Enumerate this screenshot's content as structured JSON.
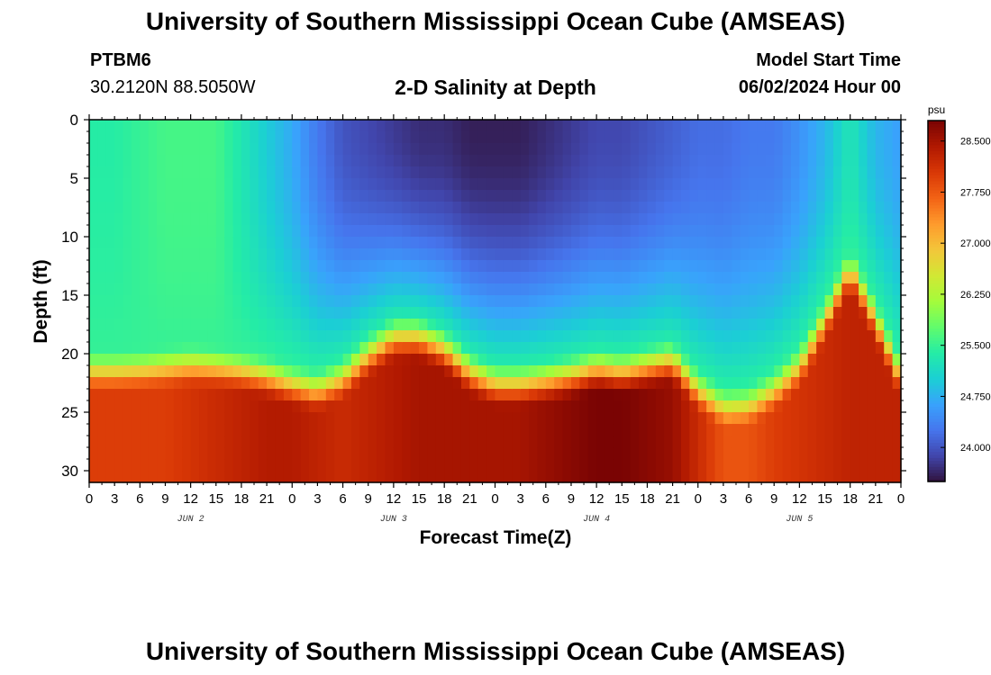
{
  "header": {
    "title": "University of Southern Mississippi Ocean Cube (AMSEAS)",
    "station": "PTBM6",
    "coords": "30.2120N  88.5050W",
    "subtitle": "2-D Salinity at Depth",
    "model_start_label": "Model Start Time",
    "model_start_value": "06/02/2024 Hour 00"
  },
  "footer": {
    "title": "University of Southern Mississippi Ocean Cube (AMSEAS)"
  },
  "chart_data": {
    "type": "heatmap",
    "title": "2-D Salinity at Depth",
    "xlabel": "Forecast Time(Z)",
    "ylabel": "Depth (ft)",
    "x_range_hours": [
      0,
      96
    ],
    "y_range_ft": [
      0,
      31
    ],
    "x_tick_labels": [
      "0",
      "3",
      "6",
      "9",
      "12",
      "15",
      "18",
      "21",
      "0",
      "3",
      "6",
      "9",
      "12",
      "15",
      "18",
      "21",
      "0",
      "3",
      "6",
      "9",
      "12",
      "15",
      "18",
      "21",
      "0",
      "3",
      "6",
      "9",
      "12",
      "15",
      "18",
      "21",
      "0"
    ],
    "y_tick_labels": [
      "0",
      "5",
      "10",
      "15",
      "20",
      "25",
      "30"
    ],
    "y_tick_values": [
      0,
      5,
      10,
      15,
      20,
      25,
      30
    ],
    "day_labels": [
      {
        "label": "JUN 2",
        "hour": 12
      },
      {
        "label": "JUN 3",
        "hour": 36
      },
      {
        "label": "JUN 4",
        "hour": 60
      },
      {
        "label": "JUN 5",
        "hour": 84
      }
    ],
    "colorbar": {
      "unit": "psu",
      "range": [
        23.5,
        28.8
      ],
      "tick_labels": [
        "28.500",
        "27.750",
        "27.000",
        "26.250",
        "25.500",
        "24.750",
        "24.000"
      ],
      "tick_values": [
        28.5,
        27.75,
        27.0,
        26.25,
        25.5,
        24.75,
        24.0
      ]
    },
    "columns_hours": [
      0,
      3,
      6,
      9,
      12,
      15,
      18,
      21,
      24,
      27,
      30,
      33,
      36,
      39,
      42,
      45,
      48,
      51,
      54,
      57,
      60,
      63,
      66,
      69,
      72,
      75,
      78,
      81,
      84,
      87,
      90,
      93,
      96
    ],
    "surface_salinity_psu": [
      25.4,
      25.4,
      25.5,
      25.6,
      25.6,
      25.6,
      25.3,
      25.0,
      24.7,
      24.3,
      24.0,
      23.9,
      23.8,
      23.7,
      23.7,
      23.6,
      23.6,
      23.6,
      23.7,
      23.8,
      23.9,
      23.9,
      24.0,
      24.1,
      24.2,
      24.2,
      24.3,
      24.3,
      24.5,
      24.8,
      25.3,
      24.8,
      24.6
    ],
    "interface_depth_ft": [
      20.3,
      20.3,
      20.2,
      20.0,
      19.8,
      20.0,
      20.3,
      20.8,
      21.5,
      22.0,
      21.0,
      19.0,
      17.5,
      17.5,
      18.5,
      20.5,
      21.5,
      21.5,
      21.2,
      20.8,
      20.2,
      20.5,
      20.0,
      19.5,
      22.0,
      23.5,
      23.3,
      22.0,
      20.0,
      16.0,
      11.5,
      16.0,
      21.0
    ],
    "bottom_salinity_psu": [
      28.0,
      28.0,
      28.0,
      28.0,
      28.1,
      28.2,
      28.3,
      28.4,
      28.4,
      28.3,
      28.2,
      28.3,
      28.4,
      28.5,
      28.5,
      28.5,
      28.5,
      28.5,
      28.6,
      28.7,
      28.8,
      28.8,
      28.7,
      28.6,
      28.2,
      27.8,
      27.8,
      28.0,
      28.1,
      28.2,
      28.3,
      28.3,
      28.3
    ]
  },
  "colors": {
    "background": "#ffffff",
    "frame": "#000000",
    "palette": [
      "#30123b",
      "#4145ab",
      "#4675ed",
      "#39a2fc",
      "#1bcfd4",
      "#24eca6",
      "#61fc6c",
      "#a4fc3b",
      "#d1e834",
      "#f3c63a",
      "#fe9b2d",
      "#f36315",
      "#d93806",
      "#b11901",
      "#7a0403"
    ]
  }
}
